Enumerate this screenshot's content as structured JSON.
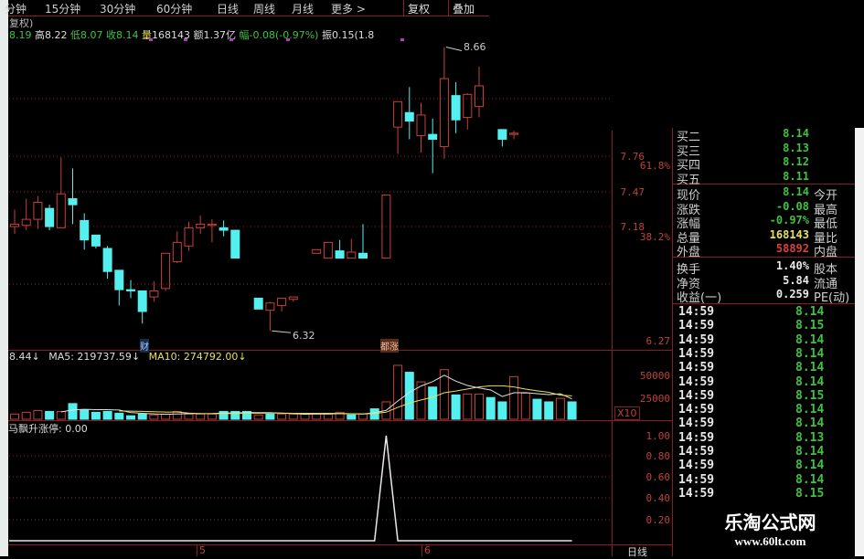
{
  "tabs": [
    "分钟",
    "15分钟",
    "30分钟",
    "60分钟",
    "日线",
    "周线",
    "月线",
    "更多 >"
  ],
  "tab_buttons": [
    "复权",
    "叠加"
  ],
  "title_fragment": "复权)",
  "quote": {
    "open": "8.19",
    "high_label": "高",
    "high": "8.22",
    "low_label": "低",
    "low": "8.07",
    "close_label": "收",
    "close": "8.14",
    "vol_label": "量",
    "vol": "168143",
    "amt_label": "额",
    "amt": "1.37亿",
    "chg_label": "幅",
    "chg": "-0.08(-0.97%)",
    "amp_label": "振",
    "amp": "0.15(1.8"
  },
  "colors": {
    "up": "#c8403a",
    "down": "#54f0f0",
    "green": "#3ec33e",
    "yellow": "#e6e05a",
    "grid": "#8a1c1c"
  },
  "chart_data": [
    {
      "type": "candlestick",
      "name": "K线",
      "price_axis_ticks": [
        "7.76",
        "7.47",
        "7.18",
        "6.27"
      ],
      "fib_labels": [
        "61.8%",
        "38.2%"
      ],
      "annotations": {
        "high": "8.66",
        "low": "6.32",
        "event1": "财",
        "event2": "都涨"
      },
      "ohlc": [
        [
          7.18,
          7.32,
          7.12,
          7.2
        ],
        [
          7.19,
          7.41,
          7.15,
          7.24
        ],
        [
          7.24,
          7.43,
          7.16,
          7.38
        ],
        [
          7.33,
          7.36,
          7.15,
          7.18
        ],
        [
          7.17,
          7.75,
          7.17,
          7.45
        ],
        [
          7.41,
          7.66,
          7.2,
          7.36
        ],
        [
          7.23,
          7.29,
          6.99,
          7.07
        ],
        [
          7.11,
          7.11,
          7.0,
          7.02
        ],
        [
          7.0,
          7.02,
          6.75,
          6.81
        ],
        [
          6.82,
          6.82,
          6.53,
          6.66
        ],
        [
          6.66,
          6.74,
          6.59,
          6.65
        ],
        [
          6.65,
          6.65,
          6.38,
          6.48
        ],
        [
          6.6,
          6.73,
          6.56,
          6.65
        ],
        [
          6.67,
          6.96,
          6.65,
          6.96
        ],
        [
          6.89,
          7.14,
          6.88,
          7.05
        ],
        [
          7.02,
          7.22,
          6.98,
          7.17
        ],
        [
          7.17,
          7.27,
          7.12,
          7.2
        ],
        [
          7.19,
          7.24,
          7.05,
          7.2
        ],
        [
          7.17,
          7.23,
          7.1,
          7.15
        ],
        [
          7.15,
          7.15,
          6.92,
          6.92
        ],
        null,
        [
          6.59,
          6.59,
          6.5,
          6.5
        ],
        [
          6.49,
          6.56,
          6.32,
          6.55
        ],
        [
          6.53,
          6.59,
          6.48,
          6.59
        ],
        [
          6.58,
          6.6,
          6.56,
          6.6
        ],
        null,
        [
          6.96,
          6.99,
          6.96,
          6.99
        ],
        [
          6.92,
          7.05,
          6.92,
          7.05
        ],
        [
          6.98,
          7.07,
          6.92,
          6.92
        ],
        [
          6.92,
          7.08,
          6.92,
          6.97
        ],
        [
          6.96,
          7.2,
          6.92,
          6.92
        ],
        null,
        [
          6.92,
          7.44,
          6.92,
          7.44
        ],
        [
          8.0,
          8.21,
          7.78,
          8.21
        ],
        [
          8.12,
          8.33,
          7.9,
          8.05
        ],
        [
          7.93,
          8.2,
          7.79,
          8.1
        ],
        [
          7.94,
          8.07,
          7.62,
          7.9
        ],
        [
          7.84,
          8.66,
          7.74,
          8.4
        ],
        [
          8.26,
          8.37,
          7.95,
          8.06
        ],
        [
          8.08,
          8.28,
          7.98,
          8.27
        ],
        [
          8.17,
          8.5,
          8.08,
          8.34
        ],
        null,
        [
          7.98,
          7.98,
          7.84,
          7.9
        ],
        [
          7.94,
          7.97,
          7.9,
          7.95
        ],
        null,
        null,
        null,
        null,
        null
      ]
    },
    {
      "type": "bar",
      "name": "VOL",
      "header": {
        "vol_fragment": "8.44↓",
        "ma5": "MA5: 219737.59↓",
        "ma10": "MA10: 274792.00↓"
      },
      "axis_ticks": [
        "50000",
        "25000"
      ],
      "unit": "X10",
      "values": [
        6000,
        8000,
        10000,
        9000,
        9000,
        18000,
        11000,
        8000,
        9000,
        7000,
        4000,
        6000,
        5000,
        6000,
        9000,
        6000,
        6000,
        6000,
        9000,
        9000,
        9000,
        5000,
        6000,
        6000,
        6000,
        6000,
        6000,
        6000,
        8000,
        5000,
        6000,
        12000,
        20000,
        62000,
        54000,
        43000,
        37000,
        57000,
        28000,
        29000,
        29000,
        25000,
        20000,
        49000,
        30000,
        23000,
        20000,
        24000,
        20000
      ],
      "up": [
        1,
        1,
        1,
        0,
        1,
        0,
        0,
        0,
        0,
        0,
        0,
        0,
        1,
        1,
        1,
        1,
        1,
        1,
        0,
        0,
        0,
        1,
        0,
        1,
        1,
        1,
        1,
        1,
        1,
        0,
        1,
        0,
        1,
        1,
        0,
        1,
        0,
        1,
        0,
        1,
        1,
        0,
        0,
        1,
        1,
        0,
        0,
        1,
        0
      ]
    },
    {
      "type": "line",
      "name": "马飘升涨停",
      "header": "马飘升涨停: 0.00",
      "axis_ticks": [
        "1.00",
        "0.80",
        "0.60",
        "0.40",
        "0.20"
      ],
      "ylim": [
        0,
        1
      ],
      "values": [
        0,
        0,
        0,
        0,
        0,
        0,
        0,
        0,
        0,
        0,
        0,
        0,
        0,
        0,
        0,
        0,
        0,
        0,
        0,
        0,
        0,
        0,
        0,
        0,
        0,
        0,
        0,
        0,
        0,
        0,
        0,
        0,
        1,
        0,
        0,
        0,
        0,
        0,
        0,
        0,
        0,
        0,
        0,
        0,
        0,
        0,
        0,
        0,
        0
      ]
    }
  ],
  "date_axis": {
    "labels": [
      "5",
      "6"
    ],
    "period": "日线"
  },
  "bids": [
    {
      "k": "买二",
      "v": "8.14"
    },
    {
      "k": "买三",
      "v": "8.13"
    },
    {
      "k": "买四",
      "v": "8.12"
    },
    {
      "k": "买五",
      "v": "8.11"
    }
  ],
  "stats": [
    {
      "k": "现价",
      "v": "8.14",
      "r": "今开",
      "c": "green"
    },
    {
      "k": "涨跌",
      "v": "-0.08",
      "r": "最高",
      "c": "green"
    },
    {
      "k": "涨幅",
      "v": "-0.97%",
      "r": "最低",
      "c": "green"
    },
    {
      "k": "总量",
      "v": "168143",
      "r": "量比",
      "c": "yellow"
    },
    {
      "k": "外盘",
      "v": "58892",
      "r": "内盘",
      "c": "red"
    }
  ],
  "fundamentals": [
    {
      "k": "换手",
      "v": "1.40%",
      "r": "股本"
    },
    {
      "k": "净资",
      "v": "5.84",
      "r": "流通"
    },
    {
      "k": "收益(一)",
      "v": "0.259",
      "r": "PE(动)"
    }
  ],
  "ticks": [
    {
      "t": "14:59",
      "p": "8.14"
    },
    {
      "t": "14:59",
      "p": "8.15"
    },
    {
      "t": "14:59",
      "p": "8.14"
    },
    {
      "t": "14:59",
      "p": "8.14"
    },
    {
      "t": "14:59",
      "p": "8.14"
    },
    {
      "t": "14:59",
      "p": "8.14"
    },
    {
      "t": "14:59",
      "p": "8.15"
    },
    {
      "t": "14:59",
      "p": "8.14"
    },
    {
      "t": "14:59",
      "p": "8.14"
    },
    {
      "t": "14:59",
      "p": "8.13"
    },
    {
      "t": "14:59",
      "p": "8.14"
    },
    {
      "t": "14:59",
      "p": "8.14"
    },
    {
      "t": "14:59",
      "p": "8.14"
    },
    {
      "t": "14:59",
      "p": "8.15"
    }
  ],
  "watermark": {
    "name": "乐淘公式网",
    "url": "www.60lt.com"
  }
}
